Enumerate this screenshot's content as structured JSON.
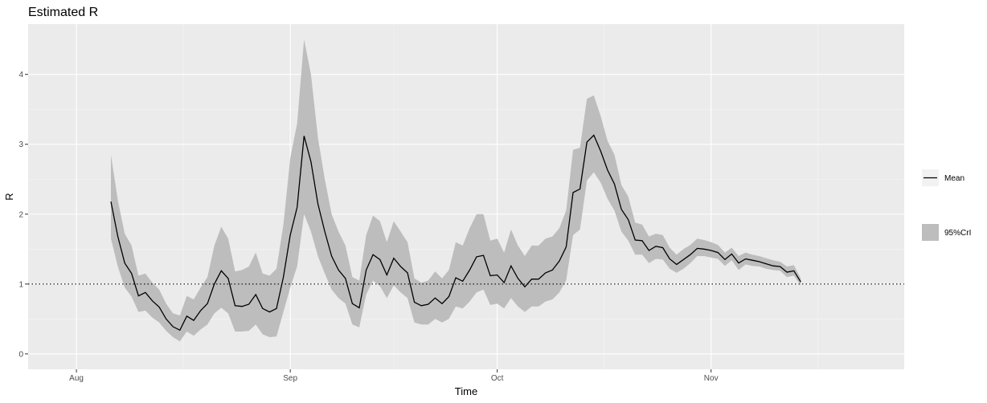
{
  "chart_data": {
    "type": "line",
    "title": "Estimated R",
    "xlabel": "Time",
    "ylabel": "R",
    "x_ticks": [
      "Aug",
      "Sep",
      "Oct",
      "Nov"
    ],
    "y_ticks": [
      "0",
      "1",
      "2",
      "3",
      "4"
    ],
    "ylim": [
      -0.22,
      4.72
    ],
    "xlim": [
      "2020-07-25",
      "2020-11-29"
    ],
    "reference_line": {
      "y": 1,
      "style": "dotted"
    },
    "x_start": "2020-08-06",
    "legend": [
      {
        "name": "Mean",
        "kind": "line",
        "color": "#000000"
      },
      {
        "name": "95%CrI",
        "kind": "band",
        "color": "#bdbdbd"
      }
    ],
    "series": [
      {
        "name": "Mean",
        "values": [
          2.18,
          1.68,
          1.3,
          1.15,
          0.83,
          0.88,
          0.76,
          0.67,
          0.5,
          0.39,
          0.34,
          0.54,
          0.48,
          0.62,
          0.72,
          1.0,
          1.19,
          1.08,
          0.69,
          0.68,
          0.71,
          0.85,
          0.65,
          0.6,
          0.65,
          1.1,
          1.7,
          2.1,
          3.12,
          2.75,
          2.15,
          1.75,
          1.4,
          1.2,
          1.08,
          0.72,
          0.66,
          1.2,
          1.42,
          1.35,
          1.13,
          1.37,
          1.25,
          1.16,
          0.74,
          0.69,
          0.71,
          0.8,
          0.72,
          0.82,
          1.09,
          1.04,
          1.2,
          1.39,
          1.41,
          1.12,
          1.13,
          1.02,
          1.26,
          1.08,
          0.96,
          1.07,
          1.07,
          1.16,
          1.2,
          1.33,
          1.53,
          2.31,
          2.36,
          3.03,
          3.13,
          2.9,
          2.63,
          2.43,
          2.07,
          1.92,
          1.63,
          1.62,
          1.48,
          1.54,
          1.52,
          1.36,
          1.28,
          1.35,
          1.42,
          1.51,
          1.5,
          1.48,
          1.45,
          1.35,
          1.43,
          1.3,
          1.36,
          1.34,
          1.32,
          1.29,
          1.26,
          1.25,
          1.17,
          1.19,
          1.03
        ]
      },
      {
        "name": "95%CrI lower",
        "values": [
          1.65,
          1.25,
          0.95,
          0.82,
          0.6,
          0.62,
          0.52,
          0.45,
          0.33,
          0.24,
          0.18,
          0.32,
          0.26,
          0.35,
          0.42,
          0.58,
          0.66,
          0.58,
          0.32,
          0.32,
          0.33,
          0.42,
          0.28,
          0.24,
          0.25,
          0.6,
          0.95,
          1.25,
          2.0,
          1.75,
          1.4,
          1.15,
          0.92,
          0.8,
          0.72,
          0.42,
          0.38,
          0.85,
          1.05,
          0.97,
          0.8,
          0.98,
          0.88,
          0.8,
          0.45,
          0.42,
          0.42,
          0.5,
          0.45,
          0.5,
          0.68,
          0.65,
          0.75,
          0.88,
          0.92,
          0.7,
          0.72,
          0.65,
          0.8,
          0.68,
          0.6,
          0.68,
          0.68,
          0.75,
          0.78,
          0.88,
          1.05,
          1.7,
          1.78,
          2.48,
          2.6,
          2.45,
          2.22,
          2.05,
          1.75,
          1.62,
          1.42,
          1.42,
          1.3,
          1.36,
          1.35,
          1.22,
          1.16,
          1.22,
          1.3,
          1.4,
          1.4,
          1.38,
          1.36,
          1.26,
          1.34,
          1.2,
          1.28,
          1.26,
          1.25,
          1.22,
          1.2,
          1.19,
          1.1,
          1.12,
          0.98
        ]
      },
      {
        "name": "95%CrI upper",
        "values": [
          2.85,
          2.2,
          1.72,
          1.55,
          1.12,
          1.15,
          1.02,
          0.92,
          0.72,
          0.58,
          0.55,
          0.83,
          0.78,
          0.95,
          1.1,
          1.55,
          1.82,
          1.65,
          1.18,
          1.2,
          1.25,
          1.45,
          1.15,
          1.12,
          1.22,
          1.85,
          2.8,
          3.3,
          4.5,
          4.0,
          3.1,
          2.5,
          2.0,
          1.75,
          1.55,
          1.1,
          1.05,
          1.7,
          1.98,
          1.9,
          1.6,
          1.9,
          1.75,
          1.6,
          1.08,
          1.02,
          1.05,
          1.18,
          1.08,
          1.2,
          1.6,
          1.55,
          1.8,
          2.0,
          2.0,
          1.62,
          1.65,
          1.45,
          1.78,
          1.55,
          1.4,
          1.55,
          1.55,
          1.65,
          1.68,
          1.8,
          2.05,
          2.92,
          2.95,
          3.65,
          3.7,
          3.4,
          3.05,
          2.85,
          2.42,
          2.25,
          1.88,
          1.85,
          1.68,
          1.72,
          1.7,
          1.52,
          1.42,
          1.5,
          1.56,
          1.65,
          1.63,
          1.6,
          1.56,
          1.45,
          1.52,
          1.4,
          1.45,
          1.42,
          1.4,
          1.37,
          1.34,
          1.32,
          1.25,
          1.27,
          1.08
        ]
      }
    ]
  }
}
